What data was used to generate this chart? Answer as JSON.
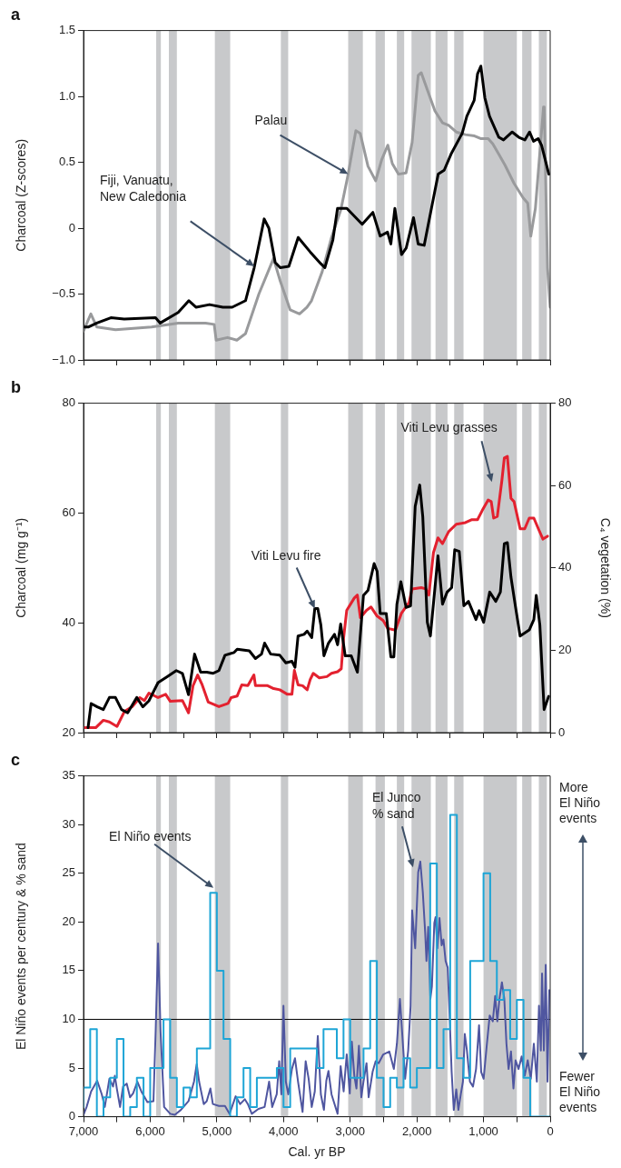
{
  "chart_data": [
    {
      "type": "line",
      "title": "a",
      "ylabel": "Charcoal (Z-scores)",
      "xlim": [
        7000,
        0
      ],
      "xticks": [
        7000,
        6500,
        6000,
        5500,
        5000,
        4500,
        4000,
        3500,
        3000,
        2500,
        2000,
        1500,
        1000,
        500,
        0
      ],
      "ylim": [
        -1,
        1.5
      ],
      "yticks": [
        {
          "value": -1,
          "label": "−1.0"
        },
        {
          "value": -0.5,
          "label": "−0.5"
        },
        0,
        0.5,
        {
          "value": 1,
          "label": "1.0"
        },
        1.5
      ],
      "tick_labels": "y",
      "bands": [
        {
          "axis": "x",
          "from": 5910,
          "to": 5840,
          "color": "#c8c9cb"
        },
        {
          "axis": "x",
          "from": 5720,
          "to": 5600,
          "color": "#c8c9cb"
        },
        {
          "axis": "x",
          "from": 5030,
          "to": 4800,
          "color": "#c8c9cb"
        },
        {
          "axis": "x",
          "from": 4040,
          "to": 3930,
          "color": "#c8c9cb"
        },
        {
          "axis": "x",
          "from": 3030,
          "to": 2810,
          "color": "#c8c9cb"
        },
        {
          "axis": "x",
          "from": 2620,
          "to": 2480,
          "color": "#c8c9cb"
        },
        {
          "axis": "x",
          "from": 2300,
          "to": 2190,
          "color": "#c8c9cb"
        },
        {
          "axis": "x",
          "from": 2080,
          "to": 1790,
          "color": "#c8c9cb"
        },
        {
          "axis": "x",
          "from": 1720,
          "to": 1540,
          "color": "#c8c9cb"
        },
        {
          "axis": "x",
          "from": 1440,
          "to": 1300,
          "color": "#c8c9cb"
        },
        {
          "axis": "x",
          "from": 1000,
          "to": 500,
          "color": "#c8c9cb"
        },
        {
          "axis": "x",
          "from": 420,
          "to": 280,
          "color": "#c8c9cb"
        },
        {
          "axis": "x",
          "from": 170,
          "to": 50,
          "color": "#c8c9cb"
        }
      ],
      "annotations": [
        "Fiji, Vanuatu,\nNew Caledonia",
        {
          "text": "Palau",
          "x": 3030,
          "y": 0.41
        }
      ],
      "series": [
        {
          "color": "#000000",
          "x": [
            7000,
            6930,
            6800,
            6590,
            6390,
            5920,
            5850,
            5580,
            5420,
            5310,
            5110,
            4910,
            4770,
            4570,
            4440,
            4290,
            4220,
            4125,
            4050,
            3920,
            3780,
            3600,
            3440,
            3380,
            3260,
            3190,
            3050,
            2820,
            2660,
            2550,
            2440,
            2390,
            2330,
            2230,
            2160,
            2050,
            1980,
            1890,
            1770,
            1680,
            1590,
            1480,
            1320,
            1250,
            1140,
            1090,
            1040,
            980,
            910,
            770,
            700,
            570,
            470,
            380,
            310,
            250,
            180,
            130,
            20
          ],
          "values": [
            -0.75,
            -0.75,
            -0.72,
            -0.68,
            -0.69,
            -0.68,
            -0.72,
            -0.64,
            -0.55,
            -0.6,
            -0.58,
            -0.6,
            -0.6,
            -0.55,
            -0.3,
            0.07,
            0,
            -0.26,
            -0.3,
            -0.29,
            -0.07,
            -0.18,
            -0.27,
            -0.3,
            -0.09,
            0.15,
            0.15,
            0.03,
            0.12,
            -0.06,
            -0.03,
            -0.12,
            0.15,
            -0.2,
            -0.15,
            0.08,
            -0.12,
            -0.13,
            0.18,
            0.41,
            0.44,
            0.57,
            0.72,
            0.85,
            0.97,
            1.17,
            1.23,
            0.99,
            0.85,
            0.69,
            0.67,
            0.73,
            0.69,
            0.67,
            0.73,
            0.66,
            0.68,
            0.63,
            0.41
          ]
        },
        {
          "color": "#999a9c",
          "x": [
            7000,
            6890,
            6800,
            6520,
            5980,
            5580,
            5170,
            5040,
            5010,
            4840,
            4700,
            4570,
            4470,
            4370,
            4150,
            4050,
            3900,
            3760,
            3650,
            3580,
            3420,
            3280,
            3140,
            3030,
            2915,
            2850,
            2733,
            2618,
            2527,
            2436,
            2368,
            2276,
            2162,
            2071,
            1980,
            1934,
            1843,
            1729,
            1615,
            1523,
            1409,
            1272,
            1135,
            1044,
            930,
            861,
            770,
            679,
            542,
            405,
            337,
            291,
            222,
            100,
            90,
            40,
            0
          ],
          "values": [
            -0.78,
            -0.65,
            -0.75,
            -0.77,
            -0.75,
            -0.72,
            -0.72,
            -0.73,
            -0.85,
            -0.83,
            -0.85,
            -0.8,
            -0.65,
            -0.5,
            -0.23,
            -0.4,
            -0.62,
            -0.65,
            -0.6,
            -0.55,
            -0.33,
            -0.07,
            0.14,
            0.41,
            0.74,
            0.72,
            0.47,
            0.36,
            0.52,
            0.63,
            0.49,
            0.41,
            0.42,
            0.65,
            1.16,
            1.18,
            1.05,
            0.89,
            0.8,
            0.78,
            0.73,
            0.71,
            0.7,
            0.68,
            0.68,
            0.64,
            0.56,
            0.48,
            0.34,
            0.23,
            0.19,
            -0.06,
            0.15,
            0.92,
            0.92,
            -0.3,
            -0.6
          ]
        }
      ]
    },
    {
      "type": "line",
      "title": "b",
      "ylabel": "Charcoal (mg g⁻¹)",
      "y2label": "C₄ vegetation (%)",
      "xlim": [
        7000,
        0
      ],
      "xticks": [
        7000,
        6500,
        6000,
        5500,
        5000,
        4500,
        4000,
        3500,
        3000,
        2500,
        2000,
        1500,
        1000,
        500,
        0
      ],
      "ylim": [
        20,
        80
      ],
      "yticks": [
        20,
        40,
        60,
        80
      ],
      "y2lim": [
        0,
        80
      ],
      "y2ticks": [
        0,
        20,
        40,
        60,
        80
      ],
      "tick_labels": "y",
      "bands": [
        {
          "axis": "x",
          "from": 5910,
          "to": 5840,
          "color": "#c8c9cb"
        },
        {
          "axis": "x",
          "from": 5720,
          "to": 5600,
          "color": "#c8c9cb"
        },
        {
          "axis": "x",
          "from": 5030,
          "to": 4800,
          "color": "#c8c9cb"
        },
        {
          "axis": "x",
          "from": 4040,
          "to": 3930,
          "color": "#c8c9cb"
        },
        {
          "axis": "x",
          "from": 3030,
          "to": 2810,
          "color": "#c8c9cb"
        },
        {
          "axis": "x",
          "from": 2620,
          "to": 2480,
          "color": "#c8c9cb"
        },
        {
          "axis": "x",
          "from": 2300,
          "to": 2190,
          "color": "#c8c9cb"
        },
        {
          "axis": "x",
          "from": 2080,
          "to": 1790,
          "color": "#c8c9cb"
        },
        {
          "axis": "x",
          "from": 1720,
          "to": 1540,
          "color": "#c8c9cb"
        },
        {
          "axis": "x",
          "from": 1440,
          "to": 1300,
          "color": "#c8c9cb"
        },
        {
          "axis": "x",
          "from": 1000,
          "to": 500,
          "color": "#c8c9cb"
        },
        {
          "axis": "x",
          "from": 420,
          "to": 280,
          "color": "#c8c9cb"
        },
        {
          "axis": "x",
          "from": 170,
          "to": 50,
          "color": "#c8c9cb"
        }
      ],
      "annotations": [
        {
          "text": "Viti Levu fire",
          "x": 3531,
          "y": 42.6
        },
        "Viti Levu grasses"
      ],
      "series": [
        {
          "color": "#000000",
          "x": [
            6932,
            6886,
            6795,
            6703,
            6612,
            6521,
            6430,
            6338,
            6201,
            6110,
            6019,
            5882,
            5745,
            5608,
            5517,
            5425,
            5334,
            5243,
            5152,
            5060,
            4969,
            4878,
            4741,
            4695,
            4513,
            4421,
            4330,
            4284,
            4193,
            4056,
            3965,
            3874,
            3828,
            3782,
            3691,
            3645,
            3577,
            3531,
            3486,
            3440,
            3394,
            3326,
            3235,
            3189,
            3143,
            3075,
            2984,
            2892,
            2801,
            2733,
            2641,
            2596,
            2550,
            2459,
            2390,
            2345,
            2299,
            2240,
            2162,
            2094,
            2025,
            1957,
            1911,
            1843,
            1797,
            1683,
            1615,
            1546,
            1478,
            1432,
            1364,
            1295,
            1226,
            1113,
            1066,
            998,
            907,
            816,
            747,
            688,
            642,
            588,
            519,
            451,
            314,
            245,
            209,
            155,
            91,
            23
          ],
          "values": [
            20.9,
            25.3,
            24.7,
            24.2,
            26.4,
            26.4,
            24.2,
            23.6,
            26.4,
            24.7,
            25.8,
            29.1,
            30.2,
            31.3,
            30.8,
            26.9,
            34.3,
            31,
            31,
            30.8,
            31.3,
            34.1,
            34.6,
            35.2,
            34.9,
            33.5,
            34.3,
            36.3,
            34.3,
            34.1,
            32.7,
            33,
            31.9,
            37.6,
            37.9,
            38.5,
            37.3,
            42.6,
            42.6,
            39.6,
            34,
            36.3,
            37.9,
            36,
            39.8,
            34,
            34,
            31,
            45,
            45.9,
            50.8,
            49.4,
            41.7,
            41.7,
            33.8,
            33.8,
            43.4,
            47.5,
            42.8,
            43.1,
            61.2,
            65.1,
            59.3,
            40.1,
            37.6,
            52.2,
            43.4,
            45.6,
            46.4,
            53.3,
            53,
            43.1,
            43.9,
            40.6,
            42.2,
            40.1,
            45.6,
            43.9,
            45.6,
            54.4,
            54.6,
            48.3,
            42.8,
            37.6,
            38.7,
            40.6,
            45,
            39.6,
            24.2,
            26.6
          ]
        },
        {
          "color": "#e3212f",
          "axis": "y2",
          "x": [
            6977,
            6817,
            6703,
            6612,
            6498,
            6384,
            6270,
            6156,
            6087,
            6019,
            5882,
            5768,
            5699,
            5517,
            5425,
            5357,
            5288,
            5220,
            5129,
            4969,
            4832,
            4786,
            4695,
            4627,
            4535,
            4444,
            4421,
            4239,
            4148,
            4056,
            3942,
            3874,
            3837,
            3782,
            3714,
            3645,
            3600,
            3554,
            3463,
            3349,
            3280,
            3189,
            3134,
            3098,
            3052,
            2938,
            2892,
            2847,
            2756,
            2687,
            2596,
            2504,
            2436,
            2322,
            2231,
            2117,
            2071,
            1934,
            1866,
            1820,
            1751,
            1683,
            1615,
            1523,
            1409,
            1272,
            1181,
            1090,
            1021,
            930,
            884,
            848,
            793,
            724,
            688,
            642,
            588,
            542,
            451,
            382,
            314,
            245,
            177,
            109,
            40
          ],
          "values": [
            1.2,
            1.2,
            3,
            2.6,
            1.5,
            5.2,
            6.3,
            8.5,
            7.8,
            9.6,
            8.5,
            9.3,
            7.6,
            7.8,
            4.8,
            11.4,
            14,
            11.6,
            7.4,
            6.3,
            7.1,
            8.5,
            8.9,
            11.6,
            11.4,
            14,
            11.4,
            11.4,
            10.7,
            10.4,
            9.3,
            9.3,
            15.1,
            11.6,
            11.4,
            10.4,
            12.9,
            14.4,
            13.3,
            13.6,
            14.4,
            14.8,
            15.5,
            23.1,
            29.7,
            32.7,
            33.4,
            27.9,
            29.7,
            30.5,
            28.3,
            27.2,
            25.3,
            24.9,
            29,
            31.6,
            34.9,
            35.2,
            34.9,
            33.4,
            43.7,
            47.3,
            45.9,
            48.8,
            50.6,
            51,
            51.7,
            51.7,
            53.9,
            56.5,
            56.1,
            52.1,
            52.5,
            61.3,
            66.7,
            67.1,
            56.9,
            56.1,
            49.5,
            49.5,
            52.1,
            52.1,
            49.5,
            47,
            47.7
          ]
        }
      ]
    },
    {
      "type": "line",
      "title": "c",
      "xlabel": "Cal. yr BP",
      "ylabel": "El Niño events per century & % sand",
      "xlim": [
        7000,
        0
      ],
      "xticks": [
        {
          "value": 7000,
          "label": "7,000"
        },
        {
          "value": 6500,
          "label": null
        },
        {
          "value": 6000,
          "label": "6,000"
        },
        {
          "value": 5500,
          "label": null
        },
        {
          "value": 5000,
          "label": "5,000"
        },
        {
          "value": 4500,
          "label": null
        },
        {
          "value": 4000,
          "label": "4,000"
        },
        {
          "value": 3500,
          "label": null
        },
        {
          "value": 3000,
          "label": "3,000"
        },
        {
          "value": 2500,
          "label": null
        },
        {
          "value": 2000,
          "label": "2,000"
        },
        {
          "value": 1500,
          "label": null
        },
        {
          "value": 1000,
          "label": "1,000"
        },
        {
          "value": 500,
          "label": null
        },
        0
      ],
      "ylim": [
        0,
        35
      ],
      "yticks": [
        0,
        5,
        10,
        15,
        20,
        25,
        30,
        35
      ],
      "bands": [
        {
          "axis": "x",
          "from": 5910,
          "to": 5840,
          "color": "#c8c9cb"
        },
        {
          "axis": "x",
          "from": 5720,
          "to": 5600,
          "color": "#c8c9cb"
        },
        {
          "axis": "x",
          "from": 5030,
          "to": 4800,
          "color": "#c8c9cb"
        },
        {
          "axis": "x",
          "from": 4040,
          "to": 3930,
          "color": "#c8c9cb"
        },
        {
          "axis": "x",
          "from": 3030,
          "to": 2810,
          "color": "#c8c9cb"
        },
        {
          "axis": "x",
          "from": 2620,
          "to": 2480,
          "color": "#c8c9cb"
        },
        {
          "axis": "x",
          "from": 2300,
          "to": 2190,
          "color": "#c8c9cb"
        },
        {
          "axis": "x",
          "from": 2080,
          "to": 1790,
          "color": "#c8c9cb"
        },
        {
          "axis": "x",
          "from": 1720,
          "to": 1540,
          "color": "#c8c9cb"
        },
        {
          "axis": "x",
          "from": 1440,
          "to": 1300,
          "color": "#c8c9cb"
        },
        {
          "axis": "x",
          "from": 1000,
          "to": 500,
          "color": "#c8c9cb"
        },
        {
          "axis": "x",
          "from": 420,
          "to": 280,
          "color": "#c8c9cb"
        },
        {
          "axis": "x",
          "from": 170,
          "to": 50,
          "color": "#c8c9cb"
        }
      ],
      "ref_lines": [
        {
          "axis": "y",
          "value": 10,
          "color": "#000000"
        }
      ],
      "annotations": [
        {
          "text": "El Niño events",
          "x": 5051,
          "y": 23.5
        },
        {
          "text": "El Junco\n% sand",
          "x": 2057,
          "y": 25.6
        },
        "More\nEl Niño\nevents",
        "Fewer\nEl Niño\nevents"
      ],
      "series": [
        {
          "type": "step",
          "color": "#1ea5d6",
          "x": [
            7000,
            6900,
            6800,
            6700,
            6600,
            6500,
            6400,
            6300,
            6200,
            6100,
            6000,
            5800,
            5700,
            5600,
            5500,
            5400,
            5300,
            5100,
            5000,
            4900,
            4800,
            4700,
            4600,
            4500,
            4400,
            4100,
            4000,
            3900,
            3500,
            3400,
            3200,
            3100,
            3000,
            2800,
            2700,
            2600,
            2500,
            2400,
            2300,
            2200,
            2100,
            2000,
            1800,
            1700,
            1600,
            1500,
            1400,
            1300,
            1200,
            1000,
            900,
            800,
            700,
            600,
            500,
            400,
            300,
            120,
            0
          ],
          "values": [
            1,
            3,
            9,
            0,
            2,
            4,
            8,
            0,
            1,
            4,
            0,
            5,
            10,
            4,
            1,
            3,
            2,
            7,
            23,
            15,
            8,
            0,
            2,
            5,
            1,
            4,
            5,
            1,
            7,
            5,
            9,
            6,
            10,
            4,
            7,
            16,
            4,
            1,
            4,
            3,
            6,
            3,
            5,
            26,
            5,
            9,
            31,
            6,
            4,
            16,
            25,
            16,
            12,
            13,
            8,
            12,
            4,
            0,
            0
          ]
        },
        {
          "color": "#4f56a0",
          "x": [
            7000,
            6954,
            6886,
            6795,
            6726,
            6681,
            6612,
            6557,
            6530,
            6498,
            6452,
            6407,
            6352,
            6302,
            6256,
            6192,
            6133,
            6042,
            5951,
            5918,
            5882,
            5845,
            5791,
            5699,
            5631,
            5540,
            5425,
            5343,
            5302,
            5266,
            5197,
            5152,
            5097,
            5060,
            4969,
            4878,
            4809,
            4718,
            4650,
            4581,
            4535,
            4476,
            4376,
            4284,
            4216,
            4170,
            4102,
            4065,
            4033,
            4001,
            3965,
            3928,
            3874,
            3828,
            3782,
            3714,
            3668,
            3623,
            3577,
            3531,
            3486,
            3440,
            3394,
            3358,
            3326,
            3280,
            3189,
            3143,
            3098,
            3052,
            3006,
            2975,
            2938,
            2906,
            2869,
            2833,
            2801,
            2755,
            2723,
            2664,
            2618,
            2573,
            2504,
            2413,
            2345,
            2299,
            2254,
            2222,
            2176,
            2130,
            2094,
            2071,
            2025,
            1980,
            1948,
            1911,
            1875,
            1856,
            1829,
            1797,
            1774,
            1738,
            1719,
            1692,
            1660,
            1628,
            1601,
            1569,
            1537,
            1509,
            1478,
            1446,
            1409,
            1377,
            1341,
            1309,
            1281,
            1249,
            1204,
            1158,
            1112,
            1067,
            1035,
            998,
            953,
            907,
            861,
            825,
            793,
            761,
            724,
            688,
            656,
            624,
            588,
            551,
            519,
            474,
            428,
            382,
            337,
            291,
            245,
            200,
            168,
            140,
            122,
            95,
            67,
            40,
            13
          ],
          "values": [
            0.2,
            1,
            2.6,
            3.7,
            2.3,
            1,
            3.9,
            3.1,
            4.2,
            2.8,
            1,
            3.1,
            3.4,
            2,
            2.4,
            3.6,
            2.6,
            1.5,
            1.6,
            8.8,
            17.8,
            8.8,
            1,
            0.3,
            0.2,
            0.7,
            1.6,
            3.6,
            5.4,
            3.6,
            1.3,
            1.6,
            2.9,
            1.3,
            1.1,
            1.1,
            0.3,
            2.1,
            1.3,
            1.8,
            1.3,
            0.3,
            0.8,
            1,
            3.6,
            1,
            2.3,
            5.7,
            2.3,
            11.4,
            3.6,
            2.3,
            4.9,
            6,
            3.6,
            0.5,
            5.7,
            3.9,
            1,
            2.6,
            8.3,
            2.3,
            0.7,
            3.7,
            4.7,
            2.3,
            0.3,
            5.2,
            2.6,
            6.4,
            2.4,
            7.7,
            4.2,
            2.9,
            7.3,
            2,
            3.6,
            5.5,
            2,
            4.6,
            5.7,
            5.5,
            6.4,
            6.7,
            4.9,
            7.5,
            12.1,
            8.8,
            3.9,
            6.8,
            11.4,
            21.2,
            17.3,
            25.1,
            26.2,
            23.1,
            18.9,
            16,
            19.5,
            12.1,
            13.4,
            19.9,
            20.5,
            17.3,
            20.4,
            17.6,
            18.2,
            16,
            15.3,
            10.4,
            4.6,
            0.7,
            2.8,
            0.7,
            2.3,
            3.6,
            8.5,
            6.8,
            3.6,
            3.1,
            4.9,
            9.4,
            4.6,
            3.9,
            7.2,
            10.4,
            9.8,
            12.4,
            9.8,
            12.1,
            13.8,
            12.1,
            7.5,
            4.9,
            6.7,
            2.9,
            5.8,
            4.9,
            6.2,
            4.2,
            5.8,
            3.9,
            7.5,
            3.6,
            11.4,
            6.8,
            14.7,
            6.8,
            15.6,
            3.6,
            13
          ]
        }
      ]
    }
  ]
}
